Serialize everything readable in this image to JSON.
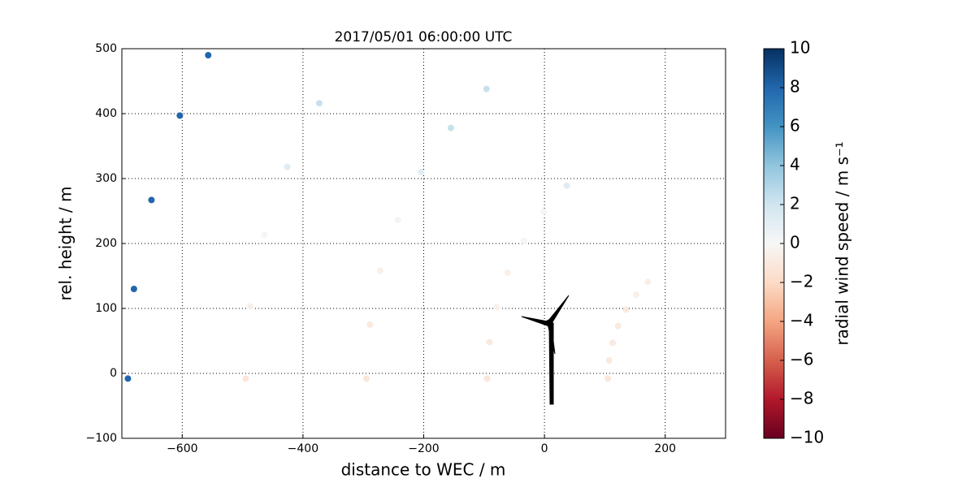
{
  "chart_data": {
    "type": "scatter",
    "title": "2017/05/01 06:00:00 UTC",
    "x_label": "distance to WEC / m",
    "y_label": "rel. height / m",
    "colorbar_label": "radial wind speed / m s⁻¹",
    "x": [
      105,
      107,
      113,
      122,
      135,
      152,
      171,
      -95,
      -91,
      -79,
      -61,
      -34,
      -1,
      37,
      -295,
      -289,
      -272,
      -243,
      -204,
      -155,
      -96,
      -495,
      -487,
      -464,
      -426,
      -373,
      -690,
      -680,
      -651,
      -604,
      -557
    ],
    "y": [
      -8,
      20,
      47,
      73,
      98,
      121,
      141,
      -8,
      48,
      102,
      155,
      204,
      249,
      289,
      -8,
      75,
      158,
      236,
      310,
      378,
      438,
      -8,
      103,
      213,
      318,
      416,
      -8,
      130,
      267,
      397,
      490
    ],
    "color_values": [
      -1.2,
      -1,
      -1,
      -1,
      -1,
      -0.6,
      -0.6,
      -1.2,
      -1,
      -0.6,
      -0.6,
      0.2,
      0.2,
      1.2,
      -1.2,
      -1,
      -0.6,
      0.2,
      1.2,
      2.3,
      2.3,
      -1.2,
      -0.6,
      0.2,
      1.2,
      2.3,
      8,
      8,
      8,
      8,
      8
    ],
    "xlim": [
      -700,
      300
    ],
    "xticks": [
      {
        "value": -600,
        "label": "−600"
      },
      {
        "value": -400,
        "label": "−400"
      },
      {
        "value": -200,
        "label": "−200"
      },
      0,
      200
    ],
    "ylim": [
      -100,
      500
    ],
    "yticks": [
      {
        "value": -100,
        "label": "−100"
      },
      0,
      100,
      200,
      300,
      400,
      500
    ],
    "clim": [
      -10,
      10
    ],
    "cbar_ticks": [
      {
        "value": -10,
        "label": "−10"
      },
      {
        "value": -8,
        "label": "−8"
      },
      {
        "value": -6,
        "label": "−6"
      },
      {
        "value": -4,
        "label": "−4"
      },
      {
        "value": -2,
        "label": "−2"
      },
      0,
      2,
      4,
      6,
      8,
      10
    ],
    "colormap": [
      "#67001f",
      "#b2182b",
      "#d6604d",
      "#f4a582",
      "#fddbc7",
      "#f7f7f7",
      "#d1e5f0",
      "#92c5de",
      "#4393c3",
      "#2166ac",
      "#053061"
    ],
    "grid": true
  }
}
